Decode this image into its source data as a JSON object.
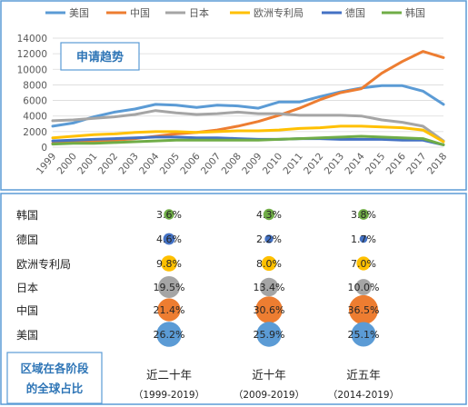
{
  "chart_data": [
    {
      "type": "line",
      "title": "申请趋势",
      "x": [
        "1999",
        "2000",
        "2001",
        "2002",
        "2003",
        "2004",
        "2005",
        "2006",
        "2007",
        "2008",
        "2009",
        "2010",
        "2011",
        "2012",
        "2013",
        "2014",
        "2015",
        "2016",
        "2017",
        "2018"
      ],
      "ylim": [
        0,
        14000
      ],
      "yticks": [
        0,
        2000,
        4000,
        6000,
        8000,
        10000,
        12000,
        14000
      ],
      "grid": true,
      "legend": "top",
      "series": [
        {
          "name": "美国",
          "color": "#5b9bd5",
          "values": [
            2700,
            3100,
            3900,
            4500,
            4900,
            5500,
            5400,
            5100,
            5400,
            5300,
            5000,
            5800,
            5800,
            6500,
            7100,
            7600,
            7900,
            7900,
            7200,
            5500
          ]
        },
        {
          "name": "中国",
          "color": "#ed7d31",
          "values": [
            500,
            600,
            700,
            900,
            1100,
            1400,
            1700,
            1900,
            2200,
            2700,
            3300,
            4100,
            5000,
            6100,
            7000,
            7500,
            9500,
            11000,
            12300,
            11500
          ]
        },
        {
          "name": "日本",
          "color": "#a5a5a5",
          "values": [
            3400,
            3500,
            3700,
            3900,
            4200,
            4700,
            4400,
            4200,
            4300,
            4500,
            4300,
            4300,
            4100,
            4100,
            4100,
            4000,
            3500,
            3200,
            2700,
            800
          ]
        },
        {
          "name": "欧洲专利局",
          "color": "#ffc000",
          "values": [
            1200,
            1400,
            1600,
            1700,
            1900,
            2000,
            2000,
            1900,
            2000,
            2100,
            2100,
            2200,
            2400,
            2500,
            2700,
            2700,
            2600,
            2500,
            2200,
            700
          ]
        },
        {
          "name": "德国",
          "color": "#4472c4",
          "values": [
            800,
            900,
            1000,
            1100,
            1200,
            1300,
            1300,
            1200,
            1200,
            1100,
            1000,
            1000,
            1100,
            1100,
            1000,
            1000,
            1000,
            900,
            900,
            300
          ]
        },
        {
          "name": "韩国",
          "color": "#70ad47",
          "values": [
            400,
            500,
            500,
            600,
            700,
            800,
            900,
            900,
            900,
            900,
            900,
            1000,
            1100,
            1200,
            1300,
            1400,
            1300,
            1200,
            1100,
            300
          ]
        }
      ]
    },
    {
      "type": "bubble",
      "title": "区域在各阶段的全球占比",
      "categories": [
        "韩国",
        "德国",
        "欧洲专利局",
        "日本",
        "中国",
        "美国"
      ],
      "periods": [
        {
          "label": "近二十年",
          "range": "（1999-2019）"
        },
        {
          "label": "近十年",
          "range": "（2009-2019）"
        },
        {
          "label": "近五年",
          "range": "（2014-2019）"
        }
      ],
      "colors": {
        "韩国": "#70ad47",
        "德国": "#4472c4",
        "欧洲专利局": "#ffc000",
        "日本": "#a5a5a5",
        "中国": "#ed7d31",
        "美国": "#5b9bd5"
      },
      "series": [
        {
          "name": "韩国",
          "values": [
            3.6,
            4.3,
            3.8
          ]
        },
        {
          "name": "德国",
          "values": [
            4.6,
            2.2,
            1.7
          ]
        },
        {
          "name": "欧洲专利局",
          "values": [
            9.8,
            8.0,
            7.0
          ]
        },
        {
          "name": "日本",
          "values": [
            19.5,
            13.4,
            10.0
          ]
        },
        {
          "name": "中国",
          "values": [
            21.4,
            30.6,
            36.5
          ]
        },
        {
          "name": "美国",
          "values": [
            26.2,
            25.9,
            25.1
          ]
        }
      ],
      "labels": [
        [
          "3.6%",
          "4.3%",
          "3.8%"
        ],
        [
          "4.6%",
          "2.2%",
          "1.7%"
        ],
        [
          "9.8%",
          "8.0%",
          "7.0%"
        ],
        [
          "19.5%",
          "13.4%",
          "10.0%"
        ],
        [
          "21.4%",
          "30.6%",
          "36.5%"
        ],
        [
          "26.2%",
          "25.9%",
          "25.1%"
        ]
      ]
    }
  ]
}
